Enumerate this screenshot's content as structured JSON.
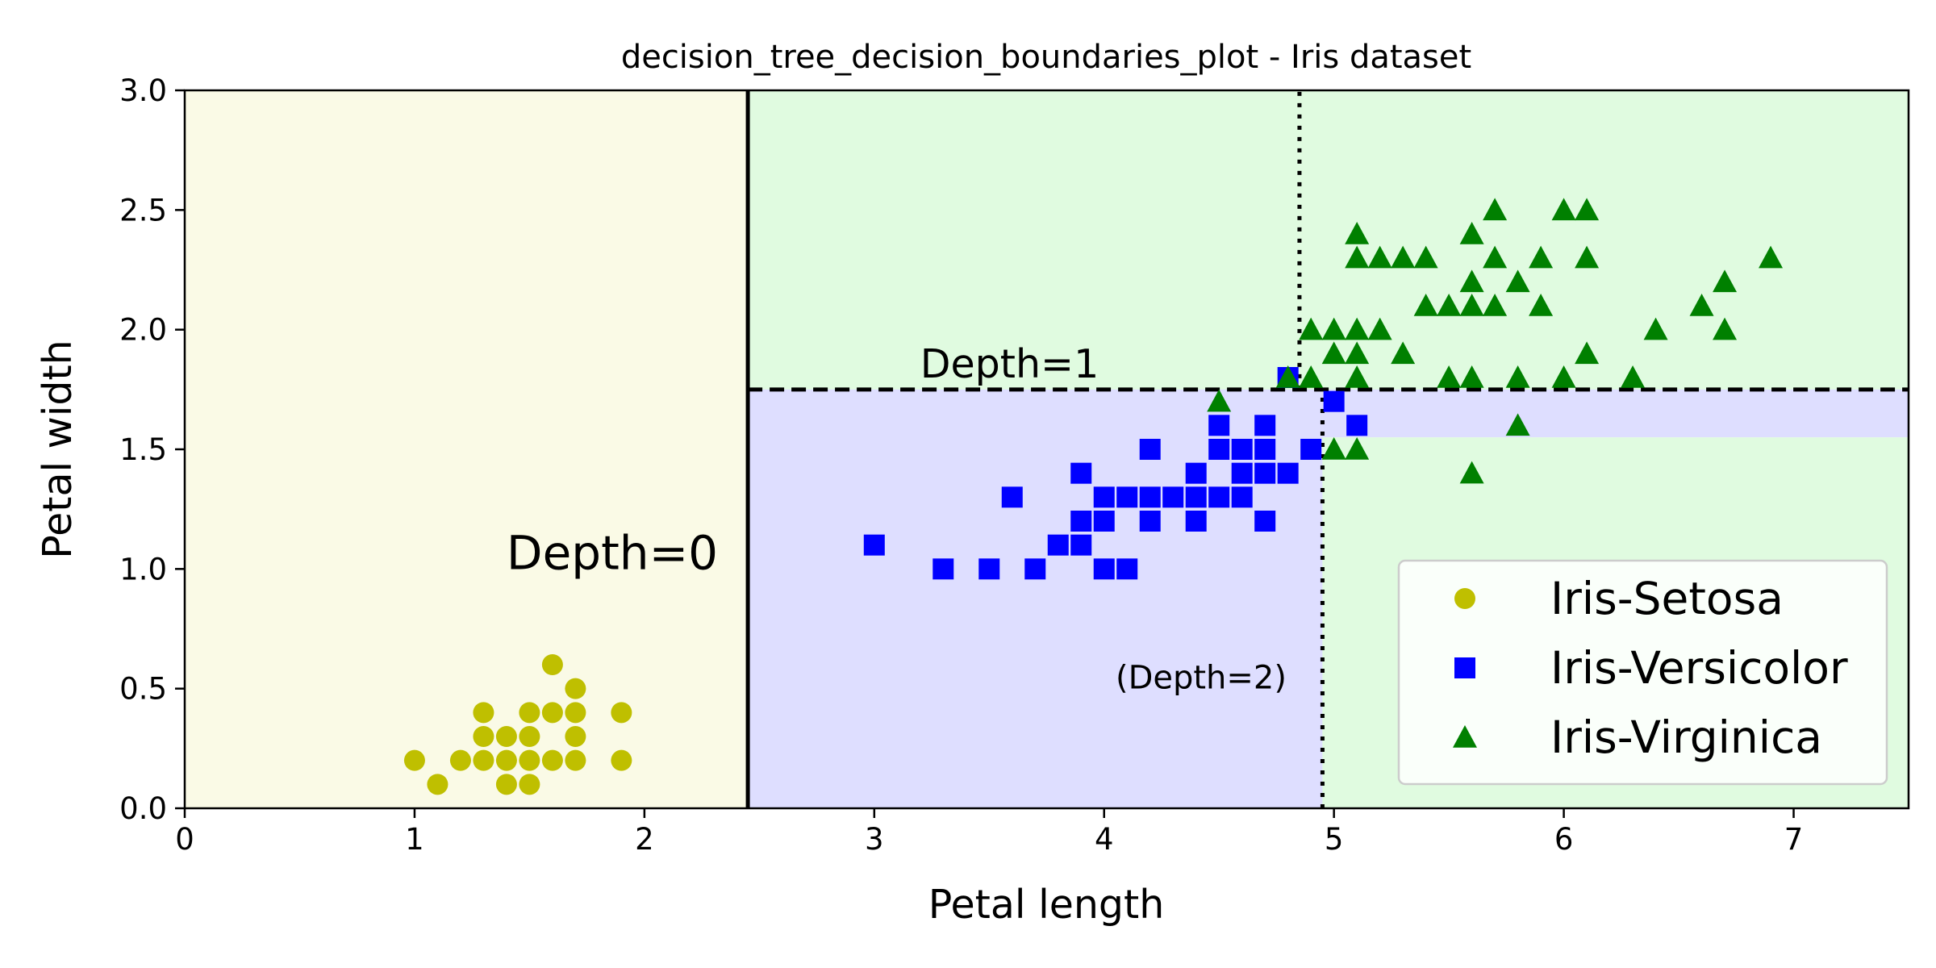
{
  "chart_data": {
    "type": "scatter",
    "title": "decision_tree_decision_boundaries_plot - Iris dataset",
    "xlabel": "Petal length",
    "ylabel": "Petal width",
    "xlim": [
      0,
      7.5
    ],
    "ylim": [
      0,
      3
    ],
    "xticks": [
      0,
      1,
      2,
      3,
      4,
      5,
      6,
      7
    ],
    "yticks": [
      0.0,
      0.5,
      1.0,
      1.5,
      2.0,
      2.5,
      3.0
    ],
    "xtick_labels": [
      "0",
      "1",
      "2",
      "3",
      "4",
      "5",
      "6",
      "7"
    ],
    "ytick_labels": [
      "0.0",
      "0.5",
      "1.0",
      "1.5",
      "2.0",
      "2.5",
      "3.0"
    ],
    "grid": false,
    "legend_position": "lower-right",
    "regions": [
      {
        "x0": 0,
        "x1": 2.45,
        "y0": 0,
        "y1": 3,
        "color": "#fafae6"
      },
      {
        "x0": 2.45,
        "x1": 7.5,
        "y0": 1.75,
        "y1": 3,
        "color": "#e0fbe0"
      },
      {
        "x0": 2.45,
        "x1": 4.95,
        "y0": 0,
        "y1": 1.75,
        "color": "#dedeff"
      },
      {
        "x0": 4.95,
        "x1": 7.5,
        "y0": 1.55,
        "y1": 1.75,
        "color": "#dedeff"
      },
      {
        "x0": 4.95,
        "x1": 7.5,
        "y0": 0,
        "y1": 1.55,
        "color": "#e0fbe0"
      }
    ],
    "boundaries": [
      {
        "style": "solid",
        "x": [
          2.45,
          2.45
        ],
        "y": [
          0,
          3
        ]
      },
      {
        "style": "dashed",
        "x": [
          2.45,
          7.5
        ],
        "y": [
          1.75,
          1.75
        ]
      },
      {
        "style": "dotted",
        "x": [
          4.95,
          4.95
        ],
        "y": [
          0,
          1.75
        ]
      },
      {
        "style": "dotted",
        "x": [
          4.85,
          4.85
        ],
        "y": [
          1.75,
          3
        ]
      }
    ],
    "annotations": [
      {
        "text": "Depth=0",
        "x": 1.4,
        "y": 1.0,
        "size": "big"
      },
      {
        "text": "Depth=1",
        "x": 3.2,
        "y": 1.8,
        "size": "mid"
      },
      {
        "text": "(Depth=2)",
        "x": 4.05,
        "y": 0.5,
        "size": "small"
      }
    ],
    "series": [
      {
        "name": "Iris-Setosa",
        "marker": "circle",
        "color": "#bfbf00",
        "points": [
          [
            1.0,
            0.2
          ],
          [
            1.1,
            0.1
          ],
          [
            1.2,
            0.2
          ],
          [
            1.3,
            0.2
          ],
          [
            1.3,
            0.3
          ],
          [
            1.3,
            0.4
          ],
          [
            1.4,
            0.1
          ],
          [
            1.4,
            0.2
          ],
          [
            1.4,
            0.3
          ],
          [
            1.5,
            0.1
          ],
          [
            1.5,
            0.2
          ],
          [
            1.5,
            0.3
          ],
          [
            1.5,
            0.4
          ],
          [
            1.6,
            0.2
          ],
          [
            1.6,
            0.4
          ],
          [
            1.6,
            0.6
          ],
          [
            1.7,
            0.2
          ],
          [
            1.7,
            0.3
          ],
          [
            1.7,
            0.4
          ],
          [
            1.7,
            0.5
          ],
          [
            1.9,
            0.2
          ],
          [
            1.9,
            0.4
          ]
        ]
      },
      {
        "name": "Iris-Versicolor",
        "marker": "square",
        "color": "#0000ff",
        "points": [
          [
            3.0,
            1.1
          ],
          [
            3.3,
            1.0
          ],
          [
            3.5,
            1.0
          ],
          [
            3.6,
            1.3
          ],
          [
            3.7,
            1.0
          ],
          [
            3.8,
            1.1
          ],
          [
            3.9,
            1.1
          ],
          [
            3.9,
            1.2
          ],
          [
            3.9,
            1.4
          ],
          [
            4.0,
            1.0
          ],
          [
            4.0,
            1.2
          ],
          [
            4.0,
            1.3
          ],
          [
            4.1,
            1.0
          ],
          [
            4.1,
            1.3
          ],
          [
            4.2,
            1.2
          ],
          [
            4.2,
            1.3
          ],
          [
            4.2,
            1.5
          ],
          [
            4.3,
            1.3
          ],
          [
            4.4,
            1.2
          ],
          [
            4.4,
            1.3
          ],
          [
            4.4,
            1.4
          ],
          [
            4.5,
            1.3
          ],
          [
            4.5,
            1.5
          ],
          [
            4.5,
            1.6
          ],
          [
            4.6,
            1.3
          ],
          [
            4.6,
            1.4
          ],
          [
            4.6,
            1.5
          ],
          [
            4.7,
            1.2
          ],
          [
            4.7,
            1.4
          ],
          [
            4.7,
            1.5
          ],
          [
            4.7,
            1.6
          ],
          [
            4.8,
            1.4
          ],
          [
            4.8,
            1.8
          ],
          [
            4.9,
            1.5
          ],
          [
            5.0,
            1.7
          ],
          [
            5.1,
            1.6
          ]
        ]
      },
      {
        "name": "Iris-Virginica",
        "marker": "triangle",
        "color": "#008000",
        "points": [
          [
            4.5,
            1.7
          ],
          [
            4.8,
            1.8
          ],
          [
            4.9,
            1.8
          ],
          [
            4.9,
            2.0
          ],
          [
            5.0,
            1.5
          ],
          [
            5.0,
            1.9
          ],
          [
            5.0,
            2.0
          ],
          [
            5.1,
            1.5
          ],
          [
            5.1,
            1.8
          ],
          [
            5.1,
            1.9
          ],
          [
            5.1,
            2.0
          ],
          [
            5.1,
            2.3
          ],
          [
            5.1,
            2.4
          ],
          [
            5.2,
            2.0
          ],
          [
            5.2,
            2.3
          ],
          [
            5.3,
            1.9
          ],
          [
            5.3,
            2.3
          ],
          [
            5.4,
            2.1
          ],
          [
            5.4,
            2.3
          ],
          [
            5.5,
            1.8
          ],
          [
            5.5,
            2.1
          ],
          [
            5.6,
            1.4
          ],
          [
            5.6,
            1.8
          ],
          [
            5.6,
            2.1
          ],
          [
            5.6,
            2.2
          ],
          [
            5.6,
            2.4
          ],
          [
            5.7,
            2.1
          ],
          [
            5.7,
            2.3
          ],
          [
            5.7,
            2.5
          ],
          [
            5.8,
            1.6
          ],
          [
            5.8,
            1.8
          ],
          [
            5.8,
            2.2
          ],
          [
            5.9,
            2.1
          ],
          [
            5.9,
            2.3
          ],
          [
            6.0,
            1.8
          ],
          [
            6.0,
            2.5
          ],
          [
            6.1,
            1.9
          ],
          [
            6.1,
            2.3
          ],
          [
            6.1,
            2.5
          ],
          [
            6.3,
            1.8
          ],
          [
            6.4,
            2.0
          ],
          [
            6.6,
            2.1
          ],
          [
            6.7,
            2.0
          ],
          [
            6.7,
            2.2
          ],
          [
            6.9,
            2.3
          ]
        ]
      }
    ]
  }
}
